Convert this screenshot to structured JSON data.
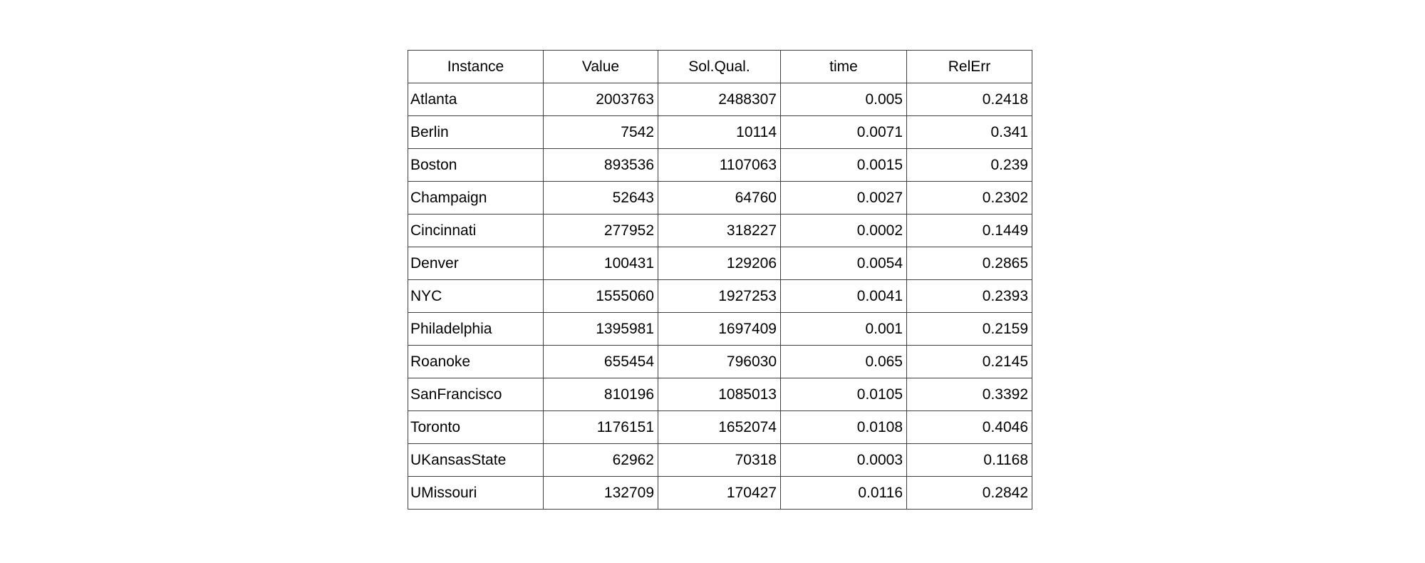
{
  "table": {
    "columns": [
      "Instance",
      "Value",
      "Sol.Qual.",
      "time",
      "RelErr"
    ],
    "rows": [
      {
        "instance": "Atlanta",
        "value": "2003763",
        "sol_qual": "2488307",
        "time": "0.005",
        "rel_err": "0.2418"
      },
      {
        "instance": "Berlin",
        "value": "7542",
        "sol_qual": "10114",
        "time": "0.0071",
        "rel_err": "0.341"
      },
      {
        "instance": "Boston",
        "value": "893536",
        "sol_qual": "1107063",
        "time": "0.0015",
        "rel_err": "0.239"
      },
      {
        "instance": "Champaign",
        "value": "52643",
        "sol_qual": "64760",
        "time": "0.0027",
        "rel_err": "0.2302"
      },
      {
        "instance": "Cincinnati",
        "value": "277952",
        "sol_qual": "318227",
        "time": "0.0002",
        "rel_err": "0.1449"
      },
      {
        "instance": "Denver",
        "value": "100431",
        "sol_qual": "129206",
        "time": "0.0054",
        "rel_err": "0.2865"
      },
      {
        "instance": "NYC",
        "value": "1555060",
        "sol_qual": "1927253",
        "time": "0.0041",
        "rel_err": "0.2393"
      },
      {
        "instance": "Philadelphia",
        "value": "1395981",
        "sol_qual": "1697409",
        "time": "0.001",
        "rel_err": "0.2159"
      },
      {
        "instance": "Roanoke",
        "value": "655454",
        "sol_qual": "796030",
        "time": "0.065",
        "rel_err": "0.2145"
      },
      {
        "instance": "SanFrancisco",
        "value": "810196",
        "sol_qual": "1085013",
        "time": "0.0105",
        "rel_err": "0.3392"
      },
      {
        "instance": "Toronto",
        "value": "1176151",
        "sol_qual": "1652074",
        "time": "0.0108",
        "rel_err": "0.4046"
      },
      {
        "instance": "UKansasState",
        "value": "62962",
        "sol_qual": "70318",
        "time": "0.0003",
        "rel_err": "0.1168"
      },
      {
        "instance": "UMissouri",
        "value": "132709",
        "sol_qual": "170427",
        "time": "0.0116",
        "rel_err": "0.2842"
      }
    ]
  },
  "chart_data": {
    "type": "table",
    "title": "",
    "columns": [
      "Instance",
      "Value",
      "Sol.Qual.",
      "time",
      "RelErr"
    ],
    "rows": [
      [
        "Atlanta",
        2003763,
        2488307,
        0.005,
        0.2418
      ],
      [
        "Berlin",
        7542,
        10114,
        0.0071,
        0.341
      ],
      [
        "Boston",
        893536,
        1107063,
        0.0015,
        0.239
      ],
      [
        "Champaign",
        52643,
        64760,
        0.0027,
        0.2302
      ],
      [
        "Cincinnati",
        277952,
        318227,
        0.0002,
        0.1449
      ],
      [
        "Denver",
        100431,
        129206,
        0.0054,
        0.2865
      ],
      [
        "NYC",
        1555060,
        1927253,
        0.0041,
        0.2393
      ],
      [
        "Philadelphia",
        1395981,
        1697409,
        0.001,
        0.2159
      ],
      [
        "Roanoke",
        655454,
        796030,
        0.065,
        0.2145
      ],
      [
        "SanFrancisco",
        810196,
        1085013,
        0.0105,
        0.3392
      ],
      [
        "Toronto",
        1176151,
        1652074,
        0.0108,
        0.4046
      ],
      [
        "UKansasState",
        62962,
        70318,
        0.0003,
        0.1168
      ],
      [
        "UMissouri",
        132709,
        170427,
        0.0116,
        0.2842
      ]
    ]
  }
}
